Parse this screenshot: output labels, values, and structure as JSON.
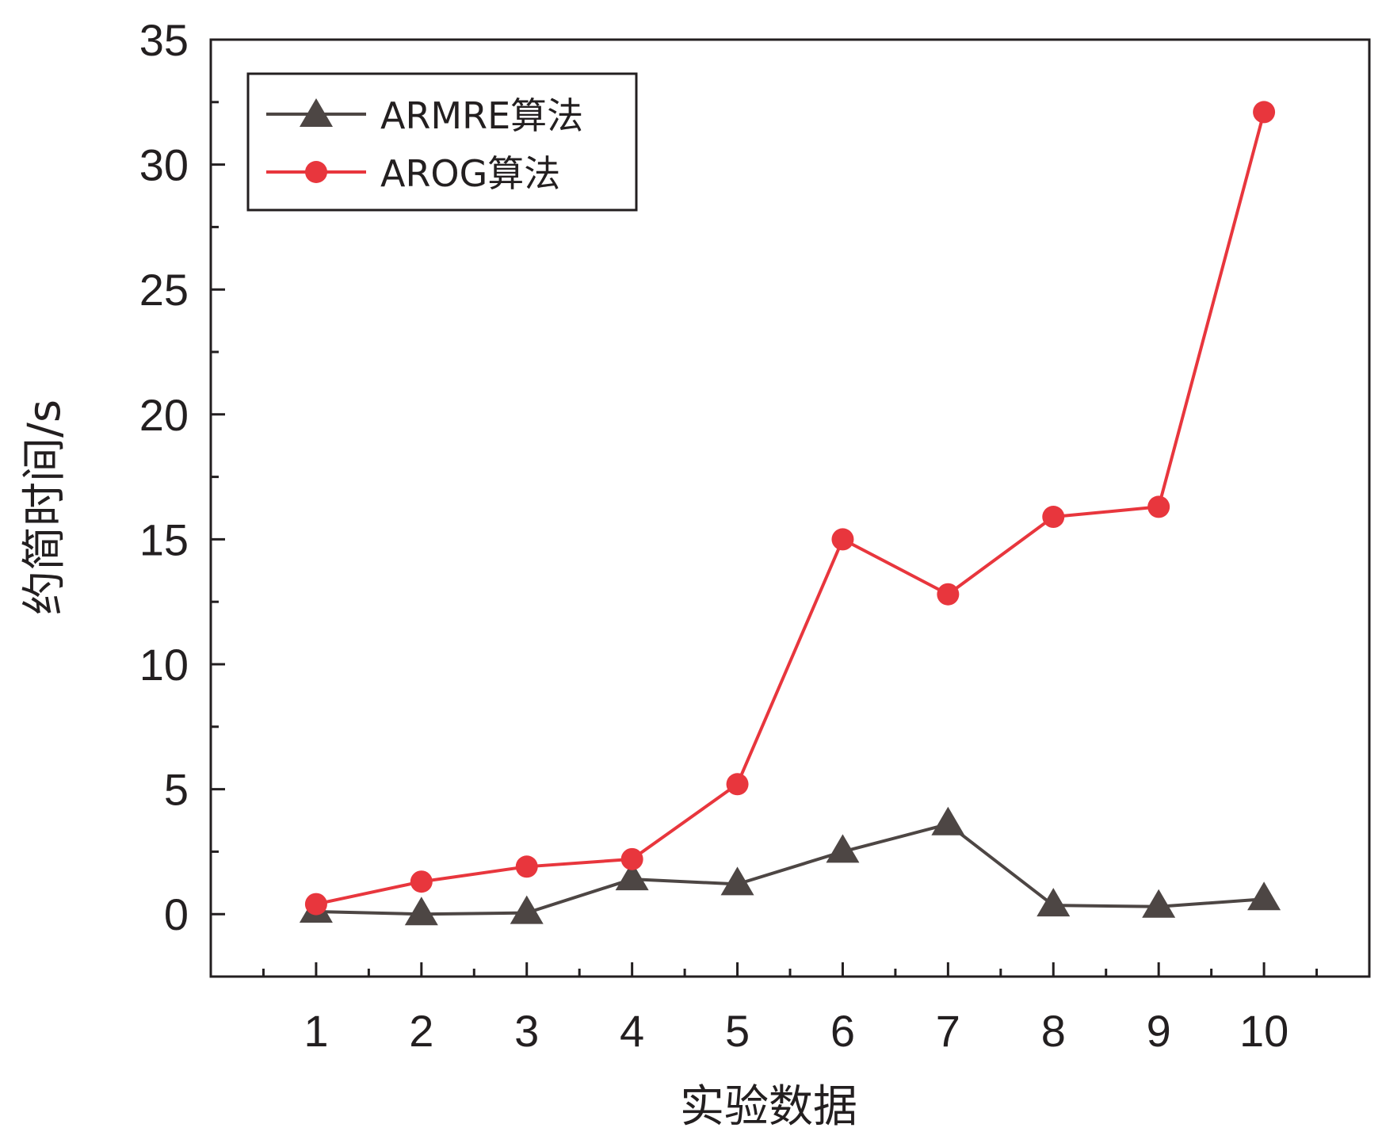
{
  "chart_data": {
    "type": "line",
    "title": "",
    "xlabel": "实验数据",
    "ylabel": "约简时间/s",
    "x": [
      1,
      2,
      3,
      4,
      5,
      6,
      7,
      8,
      9,
      10
    ],
    "xlim": [
      0,
      11
    ],
    "ylim": [
      -2.5,
      35
    ],
    "xticks": [
      "1",
      "2",
      "3",
      "4",
      "5",
      "6",
      "7",
      "8",
      "9",
      "10"
    ],
    "yticks": [
      "0",
      "5",
      "10",
      "15",
      "20",
      "25",
      "30",
      "35"
    ],
    "legend_position": "top-left",
    "grid": false,
    "series": [
      {
        "name": "ARMRE算法",
        "marker": "triangle",
        "color": "#4d4644",
        "values": [
          0.1,
          0.0,
          0.05,
          1.4,
          1.2,
          2.5,
          3.6,
          0.35,
          0.3,
          0.6
        ]
      },
      {
        "name": "AROG算法",
        "marker": "circle",
        "color": "#e8363d",
        "values": [
          0.4,
          1.3,
          1.9,
          2.2,
          5.2,
          15.0,
          12.8,
          15.9,
          16.3,
          32.1
        ]
      }
    ]
  }
}
